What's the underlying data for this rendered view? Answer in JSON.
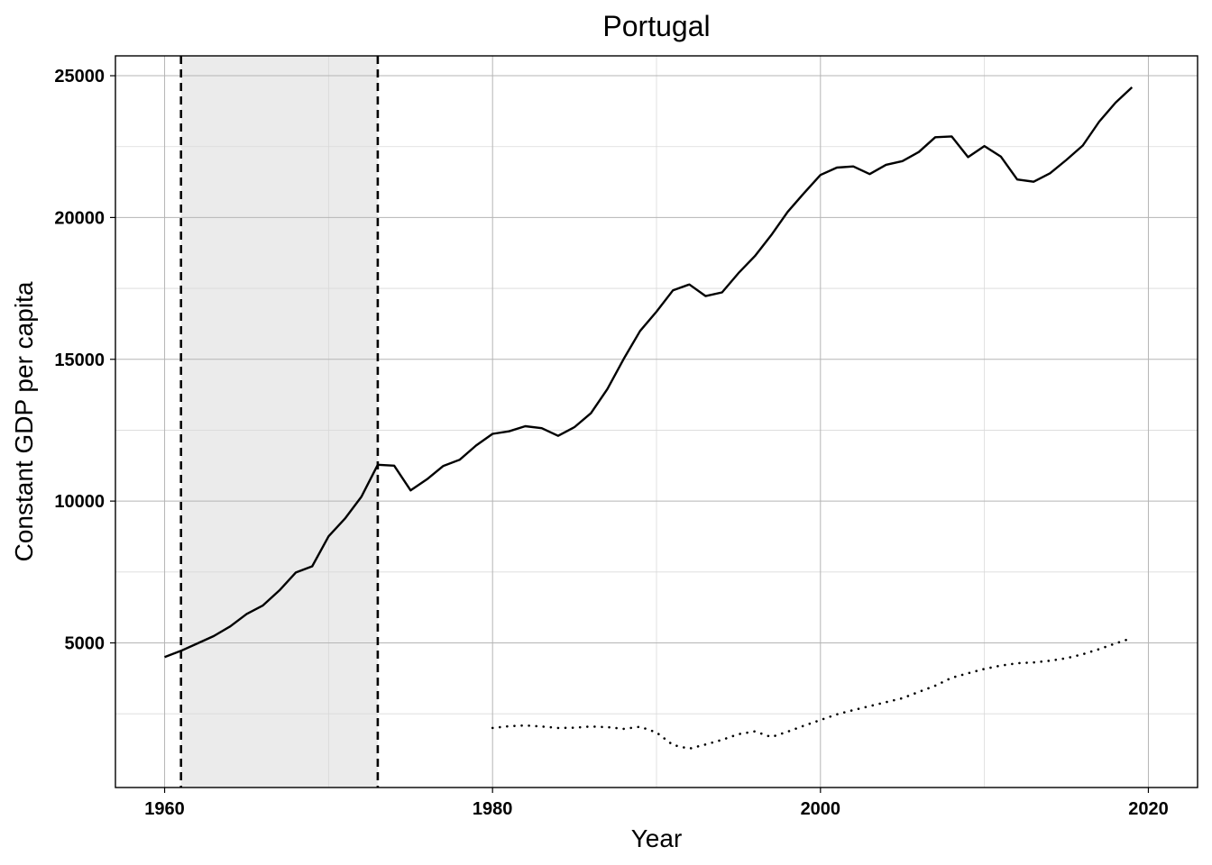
{
  "chart_data": {
    "type": "line",
    "title": "Portugal",
    "xlabel": "Year",
    "ylabel": "Constant GDP per capita",
    "xlim": [
      1957,
      2023
    ],
    "ylim": [
      -100,
      25700
    ],
    "x_ticks": [
      1960,
      1980,
      2000,
      2020
    ],
    "y_ticks": [
      5000,
      10000,
      15000,
      20000,
      25000
    ],
    "grid": true,
    "shaded_period": {
      "start": 1961,
      "end": 1973,
      "color": "#ebebeb"
    },
    "vlines": [
      1961,
      1973
    ],
    "series": [
      {
        "style": "solid",
        "color": "#000000",
        "x": [
          1960,
          1961,
          1962,
          1963,
          1964,
          1965,
          1966,
          1967,
          1968,
          1969,
          1970,
          1971,
          1972,
          1973,
          1974,
          1975,
          1976,
          1977,
          1978,
          1979,
          1980,
          1981,
          1982,
          1983,
          1984,
          1985,
          1986,
          1987,
          1988,
          1989,
          1990,
          1991,
          1992,
          1993,
          1994,
          1995,
          1996,
          1997,
          1998,
          1999,
          2000,
          2001,
          2002,
          2003,
          2004,
          2005,
          2006,
          2007,
          2008,
          2009,
          2010,
          2011,
          2012,
          2013,
          2014,
          2015,
          2016,
          2017,
          2018,
          2019
        ],
        "y": [
          4500,
          4720,
          4980,
          5240,
          5580,
          6020,
          6320,
          6850,
          7480,
          7700,
          8760,
          9380,
          10150,
          11280,
          11250,
          10380,
          10770,
          11240,
          11460,
          11960,
          12370,
          12460,
          12640,
          12570,
          12300,
          12610,
          13100,
          13950,
          15010,
          16000,
          16680,
          17430,
          17640,
          17230,
          17360,
          18040,
          18640,
          19380,
          20200,
          20860,
          21500,
          21760,
          21800,
          21530,
          21860,
          21990,
          22310,
          22830,
          22860,
          22130,
          22520,
          22150,
          21340,
          21260,
          21560,
          22030,
          22540,
          23380,
          24050,
          24590
        ]
      },
      {
        "style": "dotted",
        "color": "#000000",
        "x": [
          1980,
          1981,
          1982,
          1983,
          1984,
          1985,
          1986,
          1987,
          1988,
          1989,
          1990,
          1991,
          1992,
          1993,
          1994,
          1995,
          1996,
          1997,
          1998,
          1999,
          2000,
          2001,
          2002,
          2003,
          2004,
          2005,
          2006,
          2007,
          2008,
          2009,
          2010,
          2011,
          2012,
          2013,
          2014,
          2015,
          2016,
          2017,
          2018,
          2019
        ],
        "y": [
          2000,
          2060,
          2090,
          2050,
          2000,
          2010,
          2050,
          2030,
          1970,
          2040,
          1840,
          1400,
          1270,
          1420,
          1580,
          1780,
          1880,
          1680,
          1870,
          2080,
          2280,
          2480,
          2630,
          2770,
          2910,
          3050,
          3270,
          3490,
          3770,
          3930,
          4080,
          4200,
          4280,
          4310,
          4370,
          4460,
          4600,
          4780,
          4980,
          5170
        ]
      }
    ]
  }
}
